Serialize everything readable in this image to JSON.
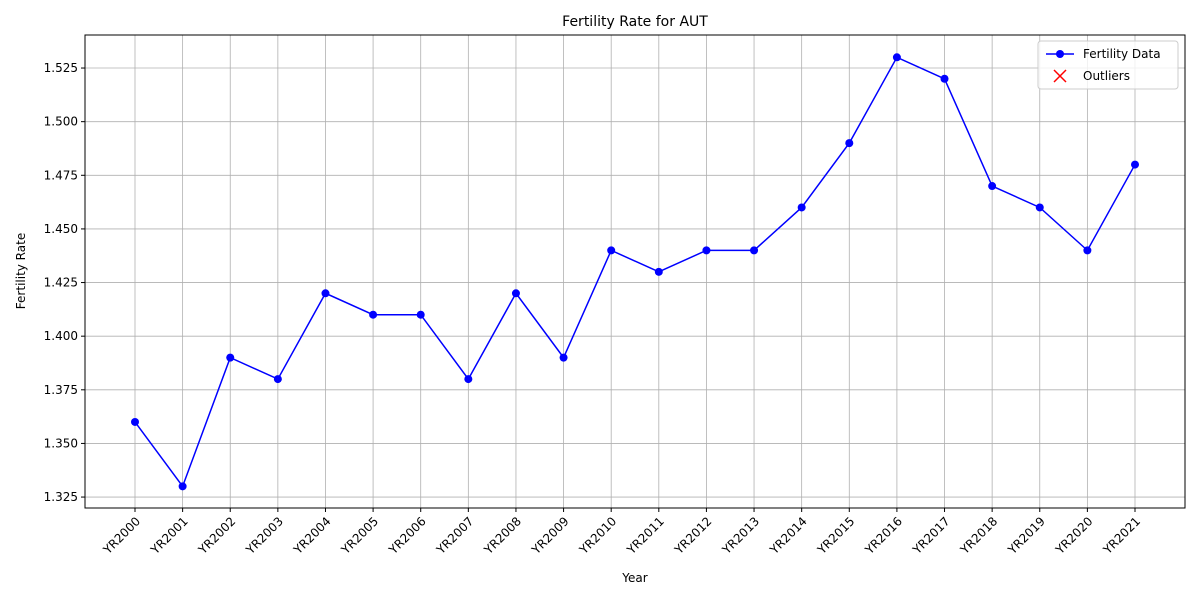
{
  "chart_data": {
    "type": "line",
    "title": "Fertility Rate for AUT",
    "x_label": "Year",
    "y_label": "Fertility Rate",
    "categories": [
      "YR2000",
      "YR2001",
      "YR2002",
      "YR2003",
      "YR2004",
      "YR2005",
      "YR2006",
      "YR2007",
      "YR2008",
      "YR2009",
      "YR2010",
      "YR2011",
      "YR2012",
      "YR2013",
      "YR2014",
      "YR2015",
      "YR2016",
      "YR2017",
      "YR2018",
      "YR2019",
      "YR2020",
      "YR2021"
    ],
    "series": [
      {
        "name": "Fertility Data",
        "color": "#0000ff",
        "marker": "o",
        "values": [
          1.36,
          1.33,
          1.39,
          1.38,
          1.42,
          1.41,
          1.41,
          1.38,
          1.42,
          1.39,
          1.44,
          1.43,
          1.44,
          1.44,
          1.46,
          1.49,
          1.53,
          1.52,
          1.47,
          1.46,
          1.44,
          1.48
        ]
      },
      {
        "name": "Outliers",
        "color": "#ff0000",
        "marker": "x",
        "values": [
          null,
          null,
          null,
          null,
          null,
          null,
          null,
          null,
          null,
          null,
          null,
          null,
          null,
          null,
          null,
          null,
          null,
          null,
          null,
          null,
          null,
          null
        ]
      }
    ],
    "ylim": [
      1.3199,
      1.5404
    ],
    "yticks": [
      {
        "value": 1.325,
        "label": "1.325"
      },
      {
        "value": 1.35,
        "label": "1.350"
      },
      {
        "value": 1.375,
        "label": "1.375"
      },
      {
        "value": 1.4,
        "label": "1.400"
      },
      {
        "value": 1.425,
        "label": "1.425"
      },
      {
        "value": 1.45,
        "label": "1.450"
      },
      {
        "value": 1.475,
        "label": "1.475"
      },
      {
        "value": 1.5,
        "label": "1.500"
      },
      {
        "value": 1.525,
        "label": "1.525"
      }
    ],
    "grid": true,
    "legend": "upper right"
  }
}
